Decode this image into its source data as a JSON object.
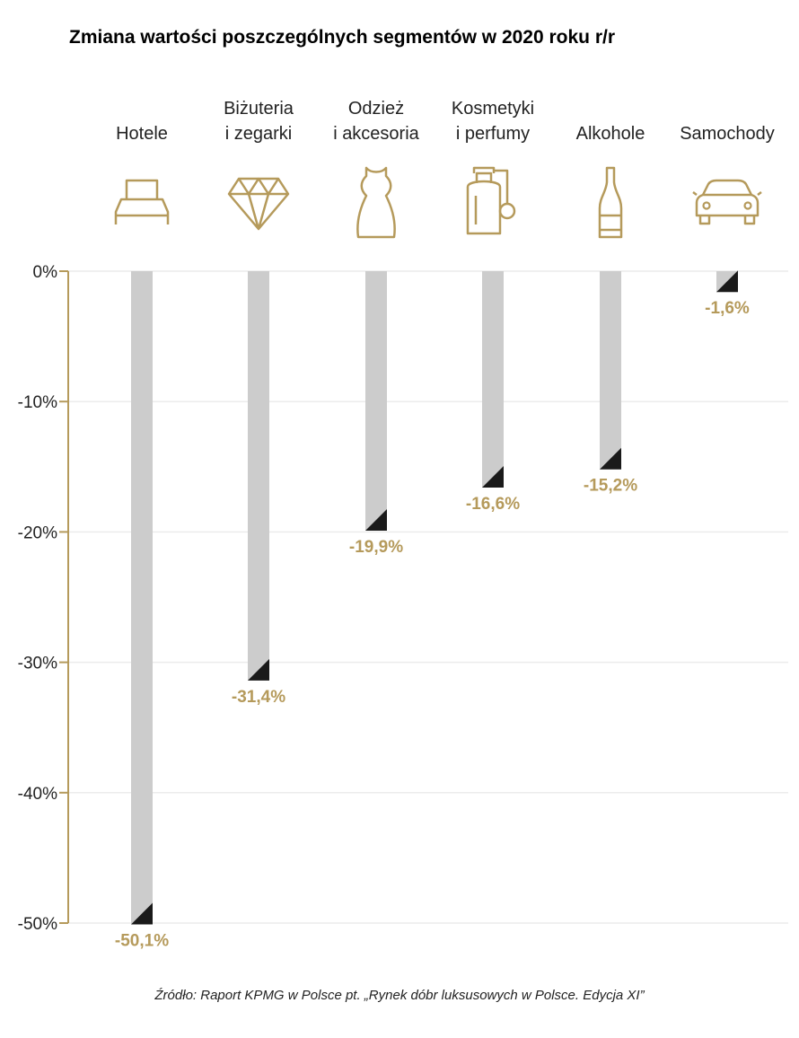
{
  "chart_data": {
    "type": "bar",
    "title": "Zmiana wartości poszczególnych segmentów w 2020 roku r/r",
    "categories": [
      {
        "lines": [
          "Hotele"
        ],
        "icon": "bed-icon"
      },
      {
        "lines": [
          "Biżuteria",
          "i zegarki"
        ],
        "icon": "diamond-icon"
      },
      {
        "lines": [
          "Odzież",
          "i akcesoria"
        ],
        "icon": "dress-icon"
      },
      {
        "lines": [
          "Kosmetyki",
          "i perfumy"
        ],
        "icon": "perfume-icon"
      },
      {
        "lines": [
          "Alkohole"
        ],
        "icon": "bottle-icon"
      },
      {
        "lines": [
          "Samochody"
        ],
        "icon": "car-icon"
      }
    ],
    "values": [
      -50.1,
      -31.4,
      -19.9,
      -16.6,
      -15.2,
      -1.6
    ],
    "value_labels": [
      "-50,1%",
      "-31,4%",
      "-19,9%",
      "-16,6%",
      "-15,2%",
      "-1,6%"
    ],
    "y_ticks": [
      0,
      -10,
      -20,
      -30,
      -40,
      -50
    ],
    "y_tick_labels": [
      "0%",
      "-10%",
      "-20%",
      "-30%",
      "-40%",
      "-50%"
    ],
    "ylim": [
      -50,
      0
    ],
    "grid": true,
    "colors": {
      "accent": "#b59a5b",
      "bar": "#cccccc",
      "marker": "#1a1a1a",
      "grid": "#ececec",
      "text": "#222222"
    }
  },
  "source": "Źródło: Raport KPMG w Polsce pt. „Rynek dóbr luksusowych w Polsce. Edycja XI”"
}
